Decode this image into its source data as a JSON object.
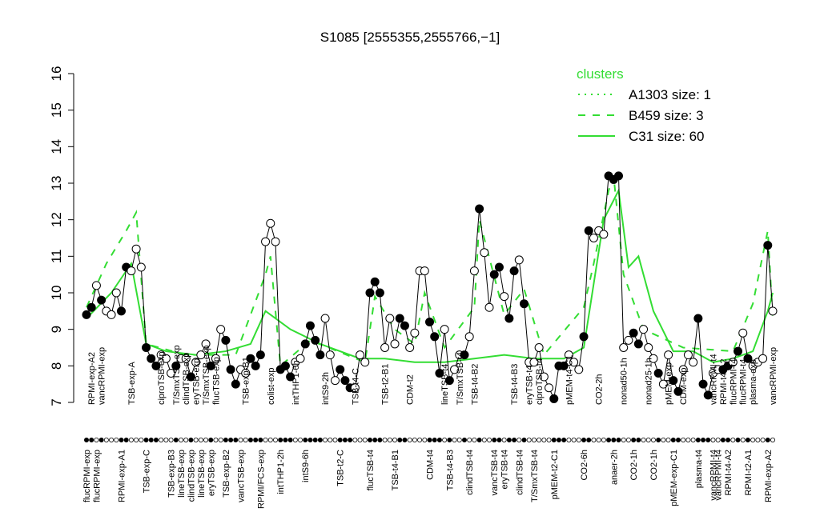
{
  "chart_data": {
    "type": "line",
    "title": "S1085 [2555355,2555766,−1]",
    "legend_title": "clusters",
    "legend_position": "top-right",
    "ylim": [
      7,
      16
    ],
    "yticks": [
      7,
      8,
      9,
      10,
      11,
      12,
      13,
      14,
      15,
      16
    ],
    "xlim": [
      0,
      138
    ],
    "values": [
      9.4,
      9.6,
      10.2,
      9.8,
      9.5,
      9.4,
      10.0,
      9.5,
      10.7,
      10.6,
      11.2,
      10.7,
      8.5,
      8.2,
      8.0,
      8.3,
      8.2,
      7.8,
      8.0,
      8.2,
      8.2,
      7.7,
      8.1,
      8.3,
      8.6,
      8.0,
      8.2,
      9.0,
      8.7,
      7.9,
      7.5,
      7.9,
      7.8,
      8.2,
      8.0,
      8.3,
      11.4,
      11.9,
      11.4,
      7.9,
      8.0,
      7.7,
      8.1,
      8.2,
      8.6,
      9.1,
      8.7,
      8.3,
      9.3,
      8.3,
      7.6,
      7.9,
      7.6,
      7.4,
      7.4,
      8.3,
      8.1,
      10.0,
      10.3,
      10.0,
      8.5,
      9.3,
      8.6,
      9.3,
      9.1,
      8.5,
      8.9,
      10.6,
      10.6,
      9.2,
      8.8,
      7.8,
      9.0,
      7.6,
      7.9,
      8.3,
      8.3,
      8.8,
      10.6,
      12.3,
      11.1,
      9.6,
      10.5,
      10.7,
      9.9,
      9.3,
      10.6,
      10.9,
      9.7,
      8.1,
      8.1,
      8.5,
      7.7,
      7.4,
      7.1,
      8.0,
      8.0,
      8.3,
      8.1,
      7.9,
      8.8,
      11.7,
      11.5,
      11.7,
      11.6,
      13.2,
      13.1,
      13.2,
      8.5,
      8.7,
      8.9,
      8.6,
      9.0,
      8.5,
      8.2,
      7.8,
      7.5,
      8.3,
      7.6,
      7.3,
      7.9,
      8.3,
      8.1,
      9.3,
      7.5,
      7.2,
      7.8,
      7.9,
      7.9,
      8.0,
      8.1,
      8.4,
      8.9,
      8.2,
      8.0,
      8.1,
      8.2,
      11.3,
      9.5
    ],
    "point_colors": [
      "#000",
      "#000",
      "#fff",
      "#000",
      "#fff",
      "#fff",
      "#fff",
      "#000",
      "#000",
      "#fff",
      "#fff",
      "#fff",
      "#000",
      "#000",
      "#000",
      "#fff",
      "#fff",
      "#fff",
      "#000",
      "#fff",
      "#fff",
      "#000",
      "#fff",
      "#fff",
      "#fff",
      "#000",
      "#fff",
      "#fff",
      "#000",
      "#000",
      "#000",
      "#fff",
      "#fff",
      "#000",
      "#000",
      "#000",
      "#fff",
      "#fff",
      "#fff",
      "#000",
      "#000",
      "#000",
      "#fff",
      "#fff",
      "#000",
      "#000",
      "#000",
      "#000",
      "#fff",
      "#fff",
      "#fff",
      "#000",
      "#000",
      "#000",
      "#fff",
      "#fff",
      "#fff",
      "#000",
      "#000",
      "#000",
      "#fff",
      "#fff",
      "#fff",
      "#000",
      "#000",
      "#fff",
      "#fff",
      "#fff",
      "#fff",
      "#000",
      "#000",
      "#000",
      "#fff",
      "#000",
      "#fff",
      "#fff",
      "#000",
      "#fff",
      "#fff",
      "#000",
      "#fff",
      "#fff",
      "#000",
      "#000",
      "#fff",
      "#000",
      "#000",
      "#fff",
      "#000",
      "#fff",
      "#fff",
      "#fff",
      "#fff",
      "#fff",
      "#000",
      "#000",
      "#000",
      "#fff",
      "#fff",
      "#fff",
      "#000",
      "#000",
      "#fff",
      "#fff",
      "#fff",
      "#000",
      "#000",
      "#000",
      "#fff",
      "#fff",
      "#000",
      "#000",
      "#fff",
      "#fff",
      "#fff",
      "#000",
      "#fff",
      "#fff",
      "#000",
      "#000",
      "#fff",
      "#fff",
      "#fff",
      "#000",
      "#000",
      "#000",
      "#fff",
      "#fff",
      "#000",
      "#000",
      "#fff",
      "#000",
      "#fff",
      "#000",
      "#fff",
      "#fff",
      "#fff",
      "#000",
      "#fff"
    ],
    "top_labels": [
      {
        "x": 1,
        "label": "RPMI-exp-A2"
      },
      {
        "x": 3,
        "label": "vancRPMI-exp"
      },
      {
        "x": 9,
        "label": "TSB-exp-A"
      },
      {
        "x": 15,
        "label": "ciproTSB-exp"
      },
      {
        "x": 18,
        "label": "T/SmxTSB-exp"
      },
      {
        "x": 20,
        "label": "clindTSB-exp"
      },
      {
        "x": 22,
        "label": "eryTSB-exp"
      },
      {
        "x": 24,
        "label": "T/SmxTSB-exp"
      },
      {
        "x": 26,
        "label": "flucTSB-exp"
      },
      {
        "x": 32,
        "label": "TSB-exp-B1"
      },
      {
        "x": 37,
        "label": "colist-exp"
      },
      {
        "x": 42,
        "label": "intTHP1-6h"
      },
      {
        "x": 48,
        "label": "intS9-2h"
      },
      {
        "x": 54,
        "label": "TSB-t4-C"
      },
      {
        "x": 60,
        "label": "TSB-t2-B1"
      },
      {
        "x": 65,
        "label": "CDM-t2"
      },
      {
        "x": 72,
        "label": "lineTSB-t4"
      },
      {
        "x": 75,
        "label": "T/SmxTSB-t4"
      },
      {
        "x": 78,
        "label": "TSB-t4-B2"
      },
      {
        "x": 86,
        "label": "TSB-t4-B3"
      },
      {
        "x": 89,
        "label": "eryTSB-t4"
      },
      {
        "x": 91,
        "label": "ciproTSB-t4"
      },
      {
        "x": 97,
        "label": "pMEM-t4-C1"
      },
      {
        "x": 103,
        "label": "CO2-2h"
      },
      {
        "x": 108,
        "label": "nonad50-1h"
      },
      {
        "x": 113,
        "label": "nonad25-1h"
      },
      {
        "x": 117,
        "label": "pMEM-exp"
      },
      {
        "x": 120,
        "label": "CDM-exp"
      },
      {
        "x": 126,
        "label": "vancRPMI-t4"
      },
      {
        "x": 128,
        "label": "RPMI-t4-A2"
      },
      {
        "x": 130,
        "label": "flucRPMI-t4"
      },
      {
        "x": 132,
        "label": "flucRPMI-t4"
      },
      {
        "x": 134,
        "label": "plasma-exp"
      },
      {
        "x": 138,
        "label": "vancRPMI-exp"
      }
    ],
    "bottom_labels": [
      {
        "x": 0,
        "label": "flucRPMI-exp"
      },
      {
        "x": 2,
        "label": "flucRPMI-exp"
      },
      {
        "x": 7,
        "label": "RPMI-exp-A1"
      },
      {
        "x": 12,
        "label": "TSB-exp-C"
      },
      {
        "x": 17,
        "label": "TSB-exp-B3"
      },
      {
        "x": 19,
        "label": "lineTSB-exp"
      },
      {
        "x": 21,
        "label": "clindTSB-exp"
      },
      {
        "x": 23,
        "label": "lineTSB-exp"
      },
      {
        "x": 25,
        "label": "eryTSB-exp"
      },
      {
        "x": 28,
        "label": "TSB-exp-B2"
      },
      {
        "x": 31,
        "label": "vancTSB-exp"
      },
      {
        "x": 35,
        "label": "RPMI/FCS-exp"
      },
      {
        "x": 39,
        "label": "intTHP1-2h"
      },
      {
        "x": 44,
        "label": "intS9-6h"
      },
      {
        "x": 51,
        "label": "TSB-t2-C"
      },
      {
        "x": 57,
        "label": "flucTSB-t4"
      },
      {
        "x": 62,
        "label": "TSB-t4-B1"
      },
      {
        "x": 69,
        "label": "CDM-t4"
      },
      {
        "x": 73,
        "label": "TSB-t4-B3"
      },
      {
        "x": 77,
        "label": "clindTSB-t4"
      },
      {
        "x": 82,
        "label": "vancTSB-t4"
      },
      {
        "x": 84,
        "label": "eryTSB-t4"
      },
      {
        "x": 87,
        "label": "clindTSB-t4"
      },
      {
        "x": 90,
        "label": "T/SmxTSB-t4"
      },
      {
        "x": 94,
        "label": "pMEM-t2-C1"
      },
      {
        "x": 100,
        "label": "CO2-6h"
      },
      {
        "x": 106,
        "label": "anaer-2h"
      },
      {
        "x": 110,
        "label": "CO2-1h"
      },
      {
        "x": 114,
        "label": "CO2-1h"
      },
      {
        "x": 118,
        "label": "pMEM-exp-C1"
      },
      {
        "x": 123,
        "label": "plasma-t4"
      },
      {
        "x": 126,
        "label": "vancRPMI-t4"
      },
      {
        "x": 127,
        "label": "vancRPMI-t4"
      },
      {
        "x": 129,
        "label": "RPMI-t4-A2"
      },
      {
        "x": 133,
        "label": "RPMI-t2-A1"
      },
      {
        "x": 137,
        "label": "RPMI-exp-A2"
      }
    ],
    "series": [
      {
        "name": "A1303 size: 1",
        "color": "#33dd33",
        "dash": "dotted",
        "x": [
          105,
          106,
          107
        ],
        "values": [
          13.3,
          13.1,
          13.2
        ]
      },
      {
        "name": "B459 size: 3",
        "color": "#33dd33",
        "dash": "dashed",
        "x": [
          0,
          4,
          8,
          10,
          12,
          20,
          30,
          36,
          37,
          39,
          45,
          56,
          58,
          62,
          66,
          68,
          72,
          78,
          79,
          84,
          88,
          92,
          100,
          102,
          105,
          106,
          108,
          112,
          120,
          130,
          134,
          137,
          138
        ],
        "values": [
          9.6,
          10.8,
          11.7,
          12.2,
          8.6,
          8.3,
          8.3,
          10.5,
          11.0,
          8.0,
          8.7,
          8.1,
          9.9,
          9.0,
          8.6,
          10.0,
          8.5,
          9.6,
          12.0,
          9.4,
          10.1,
          8.3,
          9.6,
          10.8,
          12.8,
          13.2,
          10.5,
          9.0,
          8.5,
          8.4,
          9.7,
          11.7,
          9.3
        ]
      },
      {
        "name": "C31 size: 60",
        "color": "#33dd33",
        "dash": "solid",
        "x": [
          0,
          5,
          9,
          12,
          16,
          22,
          28,
          33,
          36,
          38,
          41,
          47,
          55,
          60,
          66,
          72,
          78,
          84,
          90,
          96,
          100,
          104,
          107,
          109,
          111,
          114,
          118,
          122,
          126,
          130,
          134,
          137,
          138
        ],
        "values": [
          9.3,
          10.0,
          10.8,
          8.6,
          8.4,
          8.3,
          8.4,
          8.6,
          9.5,
          9.3,
          9.0,
          8.6,
          8.2,
          8.2,
          8.1,
          8.1,
          8.2,
          8.3,
          8.2,
          8.2,
          8.5,
          12.0,
          12.8,
          10.7,
          11.0,
          9.5,
          8.4,
          8.4,
          8.1,
          8.2,
          8.4,
          9.5,
          10.0
        ]
      }
    ]
  }
}
